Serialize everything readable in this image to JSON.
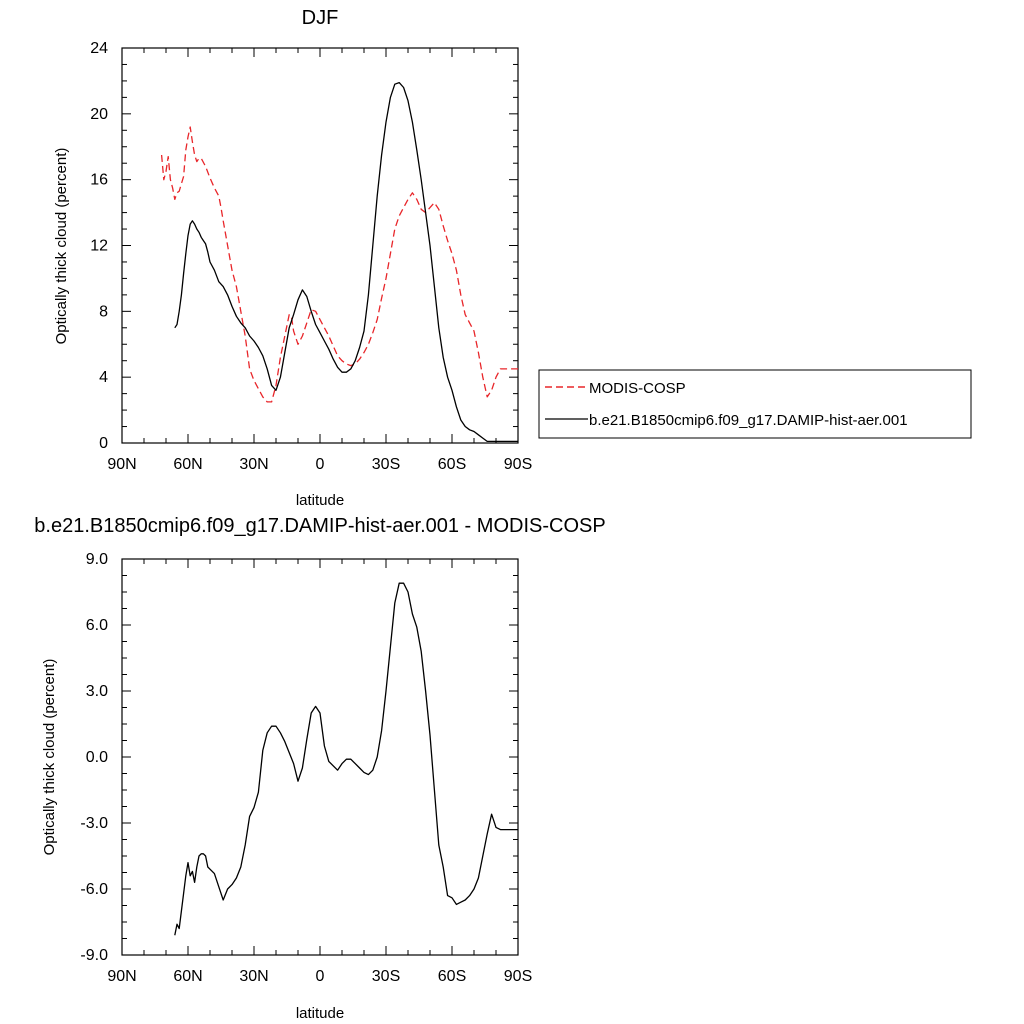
{
  "chart_data": [
    {
      "type": "line",
      "title": "DJF",
      "xlabel": "latitude",
      "ylabel": "Optically thick cloud (percent)",
      "xlim": [
        90,
        -90
      ],
      "ylim": [
        0,
        24
      ],
      "xticks": [
        90,
        60,
        30,
        0,
        -30,
        -60,
        -90
      ],
      "xtick_labels": [
        "90N",
        "60N",
        "30N",
        "0",
        "30S",
        "60S",
        "90S"
      ],
      "yticks": [
        0,
        4,
        8,
        12,
        16,
        20,
        24
      ],
      "ytick_labels": [
        "0",
        "4",
        "8",
        "12",
        "16",
        "20",
        "24"
      ],
      "legend_position": "right",
      "series": [
        {
          "name": "MODIS-COSP",
          "color": "#e8262a",
          "dash": "dashed",
          "x": [
            72,
            71,
            70,
            69,
            68,
            67,
            66,
            65,
            64,
            62,
            61,
            60,
            59,
            58,
            57,
            56,
            55,
            54,
            52,
            50,
            48,
            46,
            45,
            44,
            42,
            40,
            38,
            36,
            34,
            32,
            30,
            28,
            26,
            24,
            22,
            20,
            18,
            16,
            14,
            13,
            12,
            10,
            8,
            6,
            4,
            2,
            0,
            -2,
            -4,
            -6,
            -8,
            -10,
            -12,
            -14,
            -16,
            -18,
            -20,
            -22,
            -24,
            -26,
            -28,
            -30,
            -32,
            -34,
            -36,
            -38,
            -40,
            -42,
            -44,
            -46,
            -48,
            -50,
            -52,
            -54,
            -56,
            -58,
            -60,
            -62,
            -64,
            -66,
            -68,
            -70,
            -72,
            -74,
            -76,
            -78,
            -80,
            -82,
            -84,
            -86,
            -88,
            -89,
            -90
          ],
          "y": [
            17.5,
            16.0,
            16.5,
            17.4,
            16.0,
            15.5,
            14.8,
            15.2,
            15.3,
            16.2,
            17.8,
            18.6,
            19.2,
            18.3,
            17.5,
            17.1,
            17.3,
            17.3,
            16.8,
            16.1,
            15.5,
            15.0,
            14.3,
            13.5,
            12.0,
            10.5,
            9.5,
            8.0,
            6.5,
            4.5,
            3.8,
            3.3,
            2.8,
            2.5,
            2.5,
            3.5,
            5.2,
            6.5,
            7.8,
            7.7,
            6.8,
            6.0,
            6.5,
            7.3,
            8.1,
            8.0,
            7.5,
            7.0,
            6.5,
            5.9,
            5.3,
            5.0,
            4.8,
            4.7,
            4.8,
            5.1,
            5.5,
            6.0,
            6.7,
            7.5,
            8.8,
            10.0,
            11.5,
            13.0,
            13.8,
            14.3,
            14.8,
            15.2,
            14.8,
            14.2,
            14.0,
            14.3,
            14.6,
            14.2,
            13.2,
            12.3,
            11.5,
            10.5,
            9.0,
            7.8,
            7.3,
            6.8,
            5.5,
            4.0,
            2.8,
            3.2,
            4.0,
            4.5,
            4.5,
            4.5,
            4.5,
            4.5,
            4.5
          ]
        },
        {
          "name": "b.e21.B1850cmip6.f09_g17.DAMIP-hist-aer.001",
          "color": "#000000",
          "dash": "solid",
          "x": [
            66,
            65,
            64,
            63,
            62,
            61,
            60,
            59,
            58,
            57,
            56,
            55,
            54,
            53,
            52,
            51,
            50,
            48,
            46,
            44,
            42,
            40,
            38,
            36,
            34,
            32,
            30,
            28,
            26,
            24,
            22,
            20,
            18,
            16,
            14,
            12,
            10,
            8,
            6,
            4,
            2,
            0,
            -2,
            -4,
            -6,
            -8,
            -10,
            -12,
            -14,
            -16,
            -18,
            -20,
            -22,
            -24,
            -26,
            -28,
            -30,
            -32,
            -34,
            -36,
            -38,
            -40,
            -42,
            -44,
            -46,
            -48,
            -50,
            -52,
            -54,
            -56,
            -58,
            -60,
            -62,
            -64,
            -66,
            -68,
            -70,
            -72,
            -74,
            -76,
            -78,
            -80,
            -82,
            -84,
            -86,
            -88,
            -90
          ],
          "y": [
            7.0,
            7.2,
            8.0,
            9.0,
            10.3,
            11.5,
            12.6,
            13.3,
            13.5,
            13.3,
            13.0,
            12.8,
            12.5,
            12.3,
            12.1,
            11.6,
            11.0,
            10.5,
            9.8,
            9.5,
            9.0,
            8.3,
            7.7,
            7.3,
            7.0,
            6.5,
            6.2,
            5.8,
            5.3,
            4.5,
            3.5,
            3.2,
            4.0,
            5.5,
            7.0,
            7.8,
            8.7,
            9.3,
            8.9,
            8.0,
            7.2,
            6.7,
            6.2,
            5.7,
            5.1,
            4.6,
            4.3,
            4.3,
            4.5,
            5.0,
            5.8,
            6.8,
            9.0,
            12.0,
            15.0,
            17.5,
            19.5,
            21.0,
            21.8,
            21.9,
            21.6,
            20.8,
            19.5,
            17.8,
            16.0,
            14.0,
            12.0,
            9.5,
            7.0,
            5.2,
            4.0,
            3.2,
            2.2,
            1.4,
            1.0,
            0.8,
            0.7,
            0.5,
            0.3,
            0.1,
            0.1,
            0.1,
            0.1,
            0.1,
            0.1,
            0.1,
            0.1
          ]
        }
      ]
    },
    {
      "type": "line",
      "title": "b.e21.B1850cmip6.f09_g17.DAMIP-hist-aer.001 - MODIS-COSP",
      "xlabel": "latitude",
      "ylabel": "Optically thick cloud (percent)",
      "xlim": [
        90,
        -90
      ],
      "ylim": [
        -9,
        9
      ],
      "xticks": [
        90,
        60,
        30,
        0,
        -30,
        -60,
        -90
      ],
      "xtick_labels": [
        "90N",
        "60N",
        "30N",
        "0",
        "30S",
        "60S",
        "90S"
      ],
      "yticks": [
        -9,
        -6,
        -3,
        0,
        3,
        6,
        9
      ],
      "ytick_labels": [
        "-9.0",
        "-6.0",
        "-3.0",
        "0.0",
        "3.0",
        "6.0",
        "9.0"
      ],
      "series": [
        {
          "color": "#000000",
          "dash": "solid",
          "x": [
            66,
            65,
            64,
            63,
            62,
            61,
            60,
            59,
            58,
            57,
            56,
            55,
            54,
            53,
            52,
            51,
            50,
            48,
            46,
            44,
            42,
            40,
            38,
            36,
            34,
            32,
            30,
            28,
            26,
            24,
            22,
            20,
            18,
            16,
            14,
            12,
            10,
            8,
            6,
            4,
            2,
            0,
            -2,
            -4,
            -6,
            -8,
            -10,
            -12,
            -14,
            -16,
            -18,
            -20,
            -22,
            -24,
            -26,
            -28,
            -30,
            -32,
            -34,
            -36,
            -38,
            -40,
            -42,
            -44,
            -46,
            -48,
            -50,
            -52,
            -54,
            -56,
            -58,
            -60,
            -62,
            -64,
            -66,
            -68,
            -70,
            -72,
            -74,
            -76,
            -78,
            -80,
            -82,
            -84,
            -86,
            -88,
            -89,
            -90
          ],
          "y": [
            -8.1,
            -7.6,
            -7.8,
            -7.0,
            -6.2,
            -5.4,
            -4.8,
            -5.4,
            -5.2,
            -5.7,
            -5.0,
            -4.5,
            -4.4,
            -4.4,
            -4.5,
            -5.0,
            -5.1,
            -5.3,
            -5.9,
            -6.5,
            -6.0,
            -5.8,
            -5.5,
            -5.0,
            -4.0,
            -2.7,
            -2.3,
            -1.6,
            0.3,
            1.1,
            1.4,
            1.4,
            1.1,
            0.7,
            0.2,
            -0.3,
            -1.1,
            -0.5,
            0.8,
            2.0,
            2.3,
            2.0,
            0.5,
            -0.2,
            -0.4,
            -0.6,
            -0.3,
            -0.1,
            -0.1,
            -0.3,
            -0.5,
            -0.7,
            -0.8,
            -0.6,
            0.0,
            1.2,
            3.0,
            5.0,
            7.0,
            7.9,
            7.9,
            7.5,
            6.5,
            5.9,
            4.8,
            3.0,
            1.0,
            -1.5,
            -4.0,
            -5.0,
            -6.3,
            -6.4,
            -6.7,
            -6.6,
            -6.5,
            -6.3,
            -6.0,
            -5.5,
            -4.5,
            -3.5,
            -2.6,
            -3.2,
            -3.3,
            -3.3,
            -3.3,
            -3.3,
            -3.3,
            -3.3
          ]
        }
      ]
    }
  ]
}
